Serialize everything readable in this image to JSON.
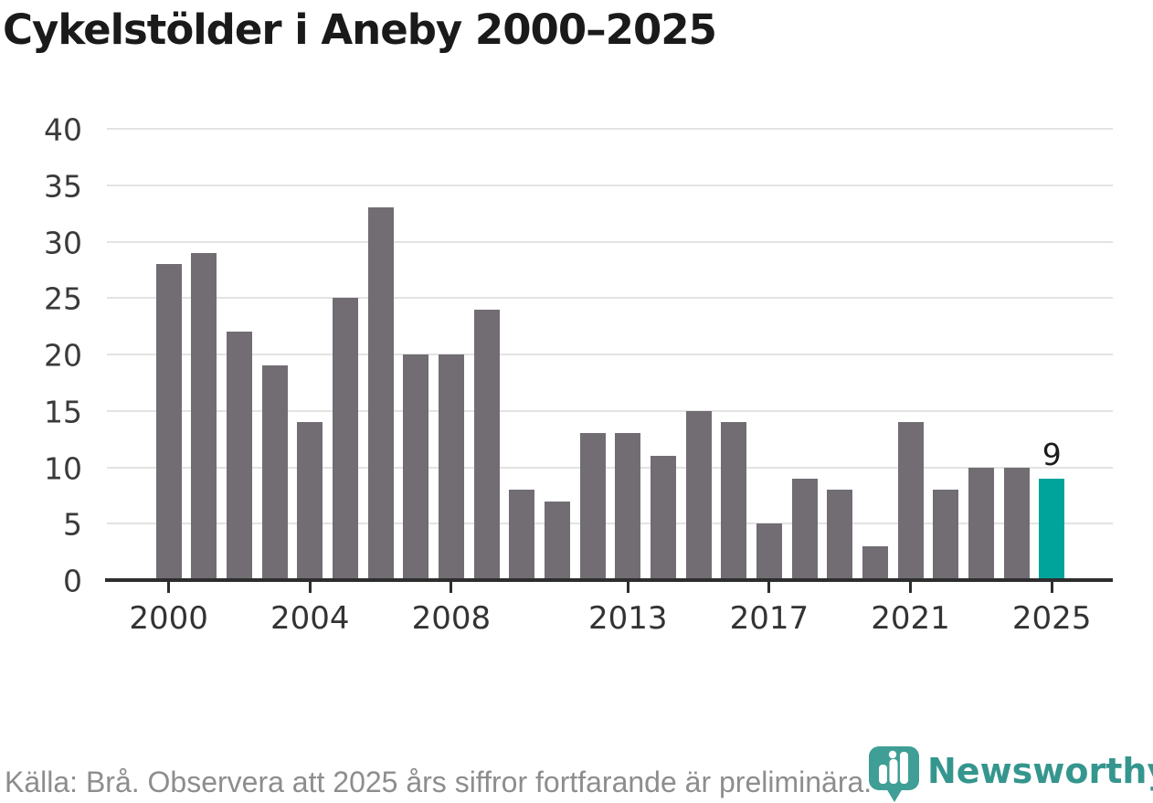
{
  "title": "Cykelstölder i Aneby 2000–2025",
  "footer": {
    "source_note": "Källa: Brå. Observera att 2025 års siffror fortfarande är preliminära."
  },
  "branding": {
    "logo_text": "Newsworthy",
    "logo_icon": "newsworthy-speech-bubble-bar-chart-icon"
  },
  "colors": {
    "bar": "#716d73",
    "highlight_bar": "#00a49b",
    "grid": "#e3e3e3",
    "axis": "#2d2d2d",
    "title_text": "#1a1a1a",
    "tick_text": "#3a3a3a",
    "value_label_text": "#1b1b1b",
    "footer_text": "#8d8d8d",
    "logo_icon_fill": "#3f9e95",
    "logo_text_color": "#35968e"
  },
  "chart_data": {
    "type": "bar",
    "title": "Cykelstölder i Aneby 2000–2025",
    "categories": [
      2000,
      2001,
      2002,
      2003,
      2004,
      2005,
      2006,
      2007,
      2008,
      2009,
      2010,
      2011,
      2012,
      2013,
      2014,
      2015,
      2016,
      2017,
      2018,
      2019,
      2020,
      2021,
      2022,
      2023,
      2024,
      2025
    ],
    "values": [
      28,
      29,
      22,
      19,
      14,
      25,
      33,
      20,
      20,
      24,
      8,
      7,
      13,
      13,
      11,
      15,
      14,
      5,
      9,
      8,
      3,
      14,
      8,
      10,
      10,
      9
    ],
    "highlight_category": 2025,
    "highlight_value_label": "9",
    "xlabel": "",
    "ylabel": "",
    "ylim": [
      0,
      40
    ],
    "yticks": [
      0,
      5,
      10,
      15,
      20,
      25,
      30,
      35,
      40
    ],
    "xtick_labels": [
      "2000",
      "2004",
      "2008",
      "2013",
      "2017",
      "2021",
      "2025"
    ],
    "grid": true,
    "legend": false
  }
}
